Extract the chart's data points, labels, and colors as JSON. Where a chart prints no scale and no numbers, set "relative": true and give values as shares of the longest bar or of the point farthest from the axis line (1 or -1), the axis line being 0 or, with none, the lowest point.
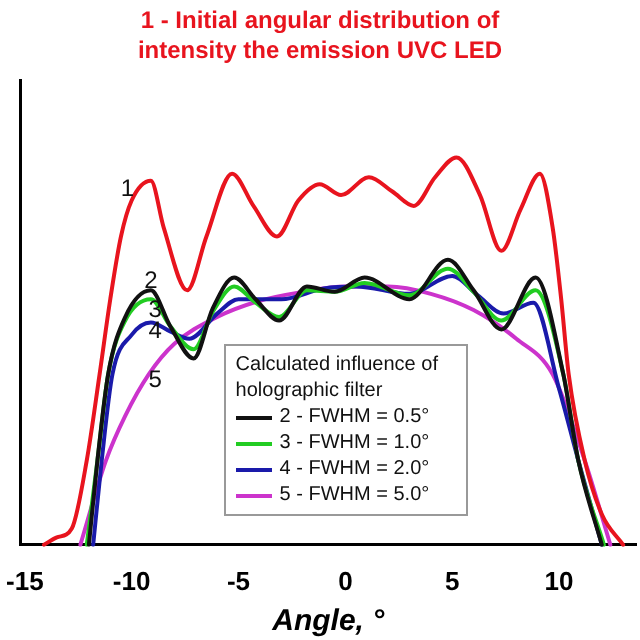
{
  "chart_data": {
    "type": "line",
    "relative": true,
    "title": "1 - Initial angular distribution of intensity the emission UVC LED",
    "xlabel": "Angle, °",
    "legend_title": "Calculated influence of holographic filter",
    "legend": "bottom",
    "marker": "none",
    "line_style": "solid",
    "xlim": [
      -15.2,
      13.6
    ],
    "xticks": [
      -15,
      -10,
      -5,
      0,
      5,
      10
    ],
    "annotations": [
      {
        "text": "1",
        "x": -10.2,
        "y": 0.917
      },
      {
        "text": "2",
        "x": -9.1,
        "y": 0.68
      },
      {
        "text": "3",
        "x": -8.9,
        "y": 0.606
      },
      {
        "text": "4",
        "x": -8.9,
        "y": 0.55
      },
      {
        "text": "5",
        "x": -8.9,
        "y": 0.425
      }
    ],
    "series": [
      {
        "color": "#e8141e",
        "x": [
          -14.1,
          -13.5,
          -12.8,
          -12.1,
          -11.5,
          -11,
          -10.5,
          -10,
          -9.1,
          -8.5,
          -7.4,
          -6.5,
          -5.3,
          -4.3,
          -3.2,
          -2.2,
          -1.2,
          -0.2,
          1.1,
          2.2,
          3.2,
          4.2,
          5.2,
          6.3,
          7.3,
          8.2,
          9.1,
          9.7,
          10.1,
          10.45,
          11.2,
          12,
          13
        ],
        "values": [
          0,
          0.019,
          0.042,
          0.218,
          0.44,
          0.634,
          0.796,
          0.889,
          0.94,
          0.819,
          0.657,
          0.796,
          0.958,
          0.875,
          0.796,
          0.889,
          0.931,
          0.903,
          0.949,
          0.912,
          0.875,
          0.949,
          1,
          0.903,
          0.759,
          0.866,
          0.958,
          0.819,
          0.634,
          0.44,
          0.218,
          0.079,
          0
        ]
      },
      {
        "name": "2 - FWHM = 0.5°",
        "color": "#111111",
        "x": [
          -12,
          -11.6,
          -11.1,
          -10.3,
          -9.1,
          -8.2,
          -7.1,
          -6.2,
          -5.2,
          -4.2,
          -3.1,
          -1.8,
          -0.5,
          0.9,
          3,
          4.8,
          6,
          7.3,
          8.9,
          10.2,
          10.9,
          12
        ],
        "values": [
          0,
          0.218,
          0.44,
          0.588,
          0.657,
          0.565,
          0.481,
          0.611,
          0.69,
          0.634,
          0.579,
          0.667,
          0.653,
          0.69,
          0.634,
          0.736,
          0.657,
          0.556,
          0.69,
          0.44,
          0.218,
          0
        ]
      },
      {
        "name": "3 - FWHM = 1.0°",
        "color": "#22cc22",
        "x": [
          -12.1,
          -11.6,
          -11.1,
          -10.3,
          -9.1,
          -8.2,
          -7.1,
          -6.2,
          -5.2,
          -4.2,
          -3.1,
          -1.8,
          -0.5,
          0.9,
          3,
          4.8,
          6,
          7.3,
          8.9,
          10.2,
          10.9,
          12.1
        ],
        "values": [
          0,
          0.218,
          0.44,
          0.579,
          0.634,
          0.565,
          0.505,
          0.602,
          0.667,
          0.625,
          0.588,
          0.657,
          0.653,
          0.676,
          0.644,
          0.713,
          0.653,
          0.579,
          0.657,
          0.44,
          0.218,
          0
        ]
      },
      {
        "name": "4 - FWHM = 2.0°",
        "color": "#1a1aaa",
        "x": [
          -11.8,
          -11.4,
          -10.9,
          -10,
          -9.1,
          -8.2,
          -7.3,
          -6,
          -5,
          -3,
          -1,
          0.5,
          3,
          5,
          6.2,
          7.4,
          8.8,
          10,
          10.9,
          12
        ],
        "values": [
          0,
          0.218,
          0.44,
          0.542,
          0.574,
          0.551,
          0.532,
          0.597,
          0.634,
          0.634,
          0.662,
          0.667,
          0.648,
          0.694,
          0.644,
          0.597,
          0.625,
          0.403,
          0.218,
          0
        ]
      },
      {
        "name": "5 - FWHM = 5.0°",
        "color": "#cc33cc",
        "x": [
          -12.4,
          -11.2,
          -10.3,
          -9.2,
          -8,
          -6,
          -4,
          -2,
          0,
          2,
          4,
          6,
          8,
          9.7,
          11.2,
          12.4
        ],
        "values": [
          0,
          0.218,
          0.333,
          0.44,
          0.519,
          0.588,
          0.63,
          0.653,
          0.667,
          0.667,
          0.648,
          0.606,
          0.532,
          0.44,
          0.218,
          0
        ]
      }
    ]
  }
}
